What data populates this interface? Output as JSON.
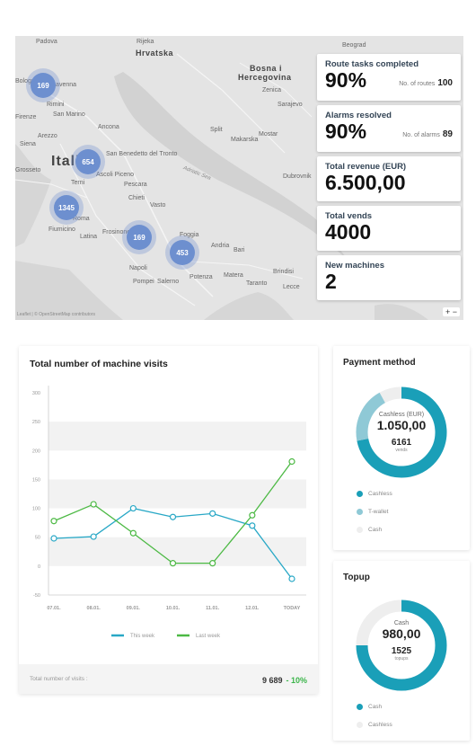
{
  "map": {
    "labels": {
      "padova": "Padova",
      "rijeka": "Rijeka",
      "hrvatska": "Hrvatska",
      "bosna": "Bosna i",
      "hercegovina": "Hercegovina",
      "beograd": "Beograd",
      "zenica": "Zenica",
      "sarajevo": "Sarajevo",
      "bologna": "Bologna",
      "ravenna": "Ravenna",
      "rimini": "Rimini",
      "san_marino": "San Marino",
      "firenze": "Firenze",
      "ancona": "Ancona",
      "arezzo": "Arezzo",
      "siena": "Siena",
      "italia": "Italia",
      "split": "Split",
      "mostar": "Mostar",
      "makarska": "Makarska",
      "dubrovnik": "Dubrovnik",
      "grosseto": "Grosseto",
      "terni": "Terni",
      "pescara": "Pescara",
      "chieti": "Chieti",
      "vasto": "Vasto",
      "roma": "Roma",
      "latina": "Latina",
      "fiumicino": "Fiumicino",
      "frosinone": "Frosinone",
      "foggia": "Foggia",
      "andria": "Andria",
      "bari": "Bari",
      "napoli": "Napoli",
      "salerno": "Salerno",
      "pompei": "Pompei",
      "potenza": "Potenza",
      "matera": "Matera",
      "taranto": "Taranto",
      "brindisi": "Brindisi",
      "lecce": "Lecce",
      "sea": "Adriatic Sea",
      "san_benedetto": "San Benedetto del Tronto",
      "ascoli": "Ascoli Piceno",
      "credit": "Leaflet | © OpenStreetMap contributors",
      "zoom": "+ −"
    },
    "clusters": [
      {
        "name": "cluster-bologna",
        "count": "169"
      },
      {
        "name": "cluster-terni",
        "count": "654"
      },
      {
        "name": "cluster-roma",
        "count": "1345"
      },
      {
        "name": "cluster-vasto",
        "count": "169"
      },
      {
        "name": "cluster-foggia",
        "count": "453"
      }
    ]
  },
  "kpis": [
    {
      "title": "Route tasks completed",
      "value": "90%",
      "sub_label": "No. of routes",
      "sub_value": "100"
    },
    {
      "title": "Alarms resolved",
      "value": "90%",
      "sub_label": "No. of alarms",
      "sub_value": "89"
    },
    {
      "title": "Total revenue (EUR)",
      "value": "6.500,00",
      "sub_label": "",
      "sub_value": ""
    },
    {
      "title": "Total vends",
      "value": "4000",
      "sub_label": "",
      "sub_value": ""
    },
    {
      "title": "New machines",
      "value": "2",
      "sub_label": "",
      "sub_value": ""
    }
  ],
  "visits": {
    "title": "Total number of machine visits",
    "footer_label": "Total number of visits :",
    "footer_value": "9 689",
    "footer_change": "- 10%",
    "legend_this": "This week",
    "legend_last": "Last week"
  },
  "chart_data": {
    "type": "line",
    "categories": [
      "07.01.",
      "08.01.",
      "09.01.",
      "10.01.",
      "11.01.",
      "12.01.",
      "TODAY"
    ],
    "ylim": [
      -50,
      300
    ],
    "yticks": [
      -50,
      0,
      50,
      100,
      150,
      200,
      250,
      300
    ],
    "series": [
      {
        "name": "This week",
        "color": "#29a8c6",
        "values": [
          48,
          51,
          100,
          85,
          91,
          70,
          -22
        ]
      },
      {
        "name": "Last week",
        "color": "#4cb944",
        "values": [
          78,
          107,
          57,
          5,
          5,
          88,
          181
        ]
      }
    ],
    "grid": "horizontal bands",
    "legend": "bottom-center"
  },
  "payment": {
    "title": "Payment method",
    "center_label": "Cashless (EUR)",
    "center_value": "1.050,00",
    "center_count": "6161",
    "center_unit": "vends",
    "legend": [
      {
        "label": "Cashless",
        "color": "#1a9fb8"
      },
      {
        "label": "T-wallet",
        "color": "#8fc9d6"
      },
      {
        "label": "Cash",
        "color": "#eeeeee"
      }
    ],
    "shares": [
      0.72,
      0.2,
      0.08
    ]
  },
  "topup": {
    "title": "Topup",
    "center_label": "Cash",
    "center_value": "980,00",
    "center_count": "1525",
    "center_unit": "topups",
    "legend": [
      {
        "label": "Cash",
        "color": "#1a9fb8"
      },
      {
        "label": "Cashless",
        "color": "#eeeeee"
      }
    ],
    "shares": [
      0.75,
      0.25
    ]
  }
}
